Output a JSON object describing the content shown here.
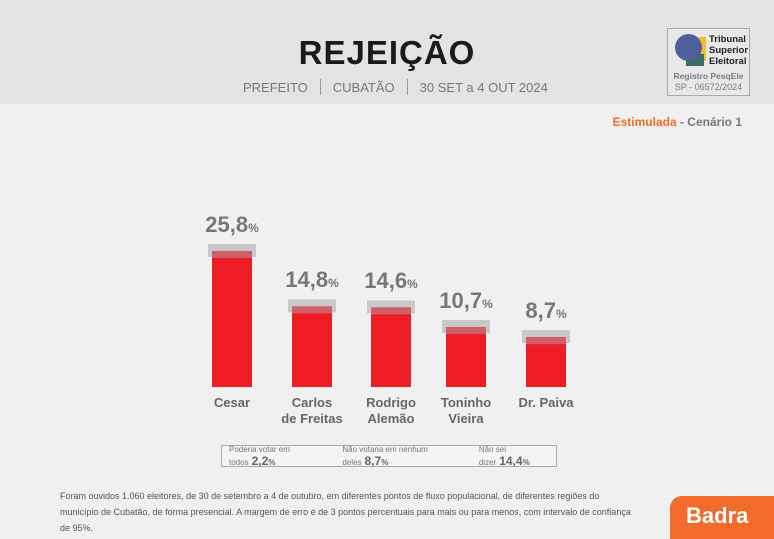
{
  "header": {
    "title": "REJEIÇÃO",
    "subtitle": [
      "PREFEITO",
      "CUBATÃO",
      "30 SET a 4 OUT 2024"
    ]
  },
  "tse": {
    "name_lines": [
      "Tribunal",
      "Superior",
      "Eleitoral"
    ],
    "registry_label": "Registro PesqEle",
    "registry_number": "SP - 06572/2024"
  },
  "scenario": {
    "type": "Estimulada",
    "label": " - Cenário 1"
  },
  "chart_data": {
    "type": "bar",
    "title": "REJEIÇÃO",
    "categories": [
      "Cesar",
      "Carlos de Freitas",
      "Rodrigo Alemão",
      "Toninho Vieira",
      "Dr. Paiva"
    ],
    "category_lines": [
      [
        "Cesar"
      ],
      [
        "Carlos",
        "de Freitas"
      ],
      [
        "Rodrigo",
        "Alemão"
      ],
      [
        "Toninho",
        "Vieira"
      ],
      [
        "Dr. Paiva"
      ]
    ],
    "values": [
      25.8,
      14.8,
      14.6,
      10.7,
      8.7
    ],
    "value_labels": [
      "25,8",
      "14,8",
      "14,6",
      "10,7",
      "8,7"
    ],
    "unit": "%",
    "margin_of_error": 3,
    "colors": {
      "bar": "#ee1c25",
      "error": "#c8c8c8"
    }
  },
  "legend": [
    {
      "label": "Poderia votar em todos",
      "value": "2,2"
    },
    {
      "label": "Não votaria em nenhum deles",
      "value": "8,7"
    },
    {
      "label": "Não sei dizer",
      "value": "14,4"
    }
  ],
  "footer": {
    "text": "Foram ouvidos 1.060 eleitores, de 30 de setembro a 4 de outubro, em diferentes pontos de fluxo populacional, de diferentes regiões do município de Cubatão, de forma presencial. A margem de erro é de 3 pontos percentuais para mais ou para menos, com intervalo de confiança de 95%."
  },
  "brand": "Badra"
}
